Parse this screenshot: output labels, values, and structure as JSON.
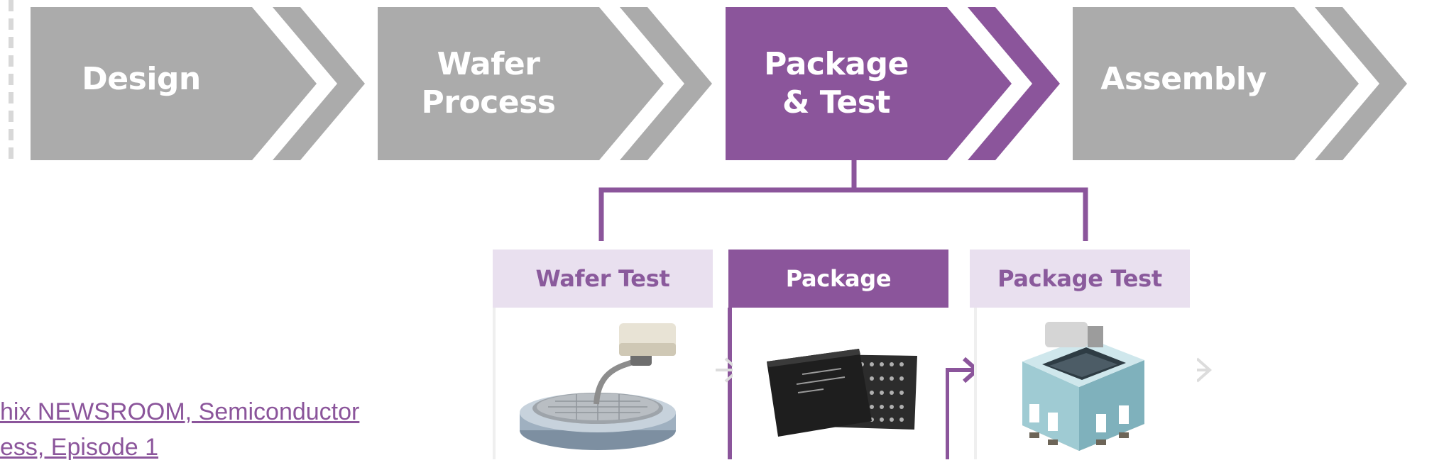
{
  "stages": [
    {
      "id": "design",
      "lines": [
        "Design"
      ],
      "active": false
    },
    {
      "id": "wafer-process",
      "lines": [
        "Wafer",
        "Process"
      ],
      "active": false
    },
    {
      "id": "package-test",
      "lines": [
        "Package",
        "& Test"
      ],
      "active": true
    },
    {
      "id": "assembly",
      "lines": [
        "Assembly"
      ],
      "active": false
    }
  ],
  "sub_steps": [
    {
      "id": "wafer-test",
      "label": "Wafer Test",
      "active": false,
      "icon": "wafer-probe-icon"
    },
    {
      "id": "package",
      "label": "Package",
      "active": true,
      "icon": "memory-chip-icon"
    },
    {
      "id": "package-test",
      "label": "Package Test",
      "active": false,
      "icon": "test-socket-icon"
    }
  ],
  "source_link": {
    "line1": "hix NEWSROOM, Semiconductor",
    "line2": "ess, Episode 1"
  },
  "colors": {
    "inactive_stage": "#ababab",
    "active_stage": "#8b559b",
    "sub_tab_light": "#e9e0ef",
    "connector": "#8b559b"
  }
}
